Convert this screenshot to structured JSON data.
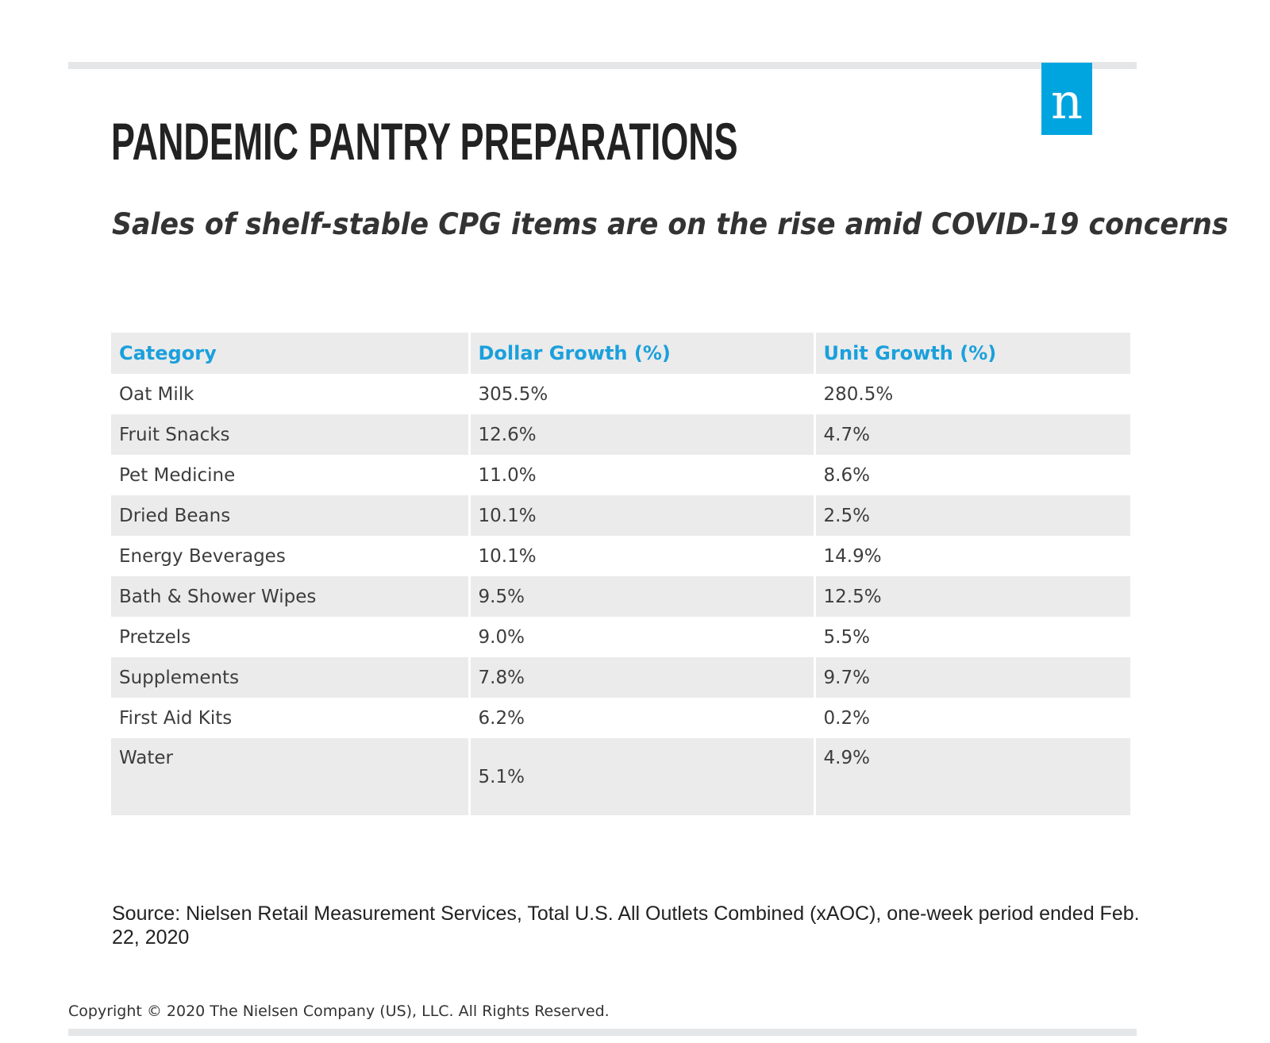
{
  "logo_letter": "n",
  "chart_data": {
    "type": "table",
    "title": "PANDEMIC PANTRY PREPARATIONS",
    "subtitle": "Sales of shelf-stable CPG items are on the rise amid COVID-19 concerns",
    "columns": [
      "Category",
      "Dollar Growth (%)",
      "Unit Growth (%)"
    ],
    "rows": [
      [
        "Oat Milk",
        "305.5%",
        "280.5%"
      ],
      [
        "Fruit Snacks",
        "12.6%",
        "4.7%"
      ],
      [
        "Pet Medicine",
        "11.0%",
        "8.6%"
      ],
      [
        "Dried Beans",
        "10.1%",
        "2.5%"
      ],
      [
        "Energy Beverages",
        "10.1%",
        "14.9%"
      ],
      [
        "Bath & Shower Wipes",
        "9.5%",
        "12.5%"
      ],
      [
        "Pretzels",
        "9.0%",
        "5.5%"
      ],
      [
        "Supplements",
        "7.8%",
        "9.7%"
      ],
      [
        "First Aid Kits",
        "6.2%",
        "0.2%"
      ],
      [
        "Water",
        "5.1%",
        "4.9%"
      ]
    ],
    "header_color": "#1aa0dc",
    "stripe_color": "#ebebeb"
  },
  "source": "Source: Nielsen Retail Measurement Services, Total U.S. All Outlets Combined (xAOC), one-week period ended Feb. 22, 2020",
  "copyright": "Copyright © 2020 The Nielsen Company (US), LLC. All Rights Reserved.",
  "colors": {
    "brand": "#00a5e0",
    "rule": "#e5e6e8"
  }
}
